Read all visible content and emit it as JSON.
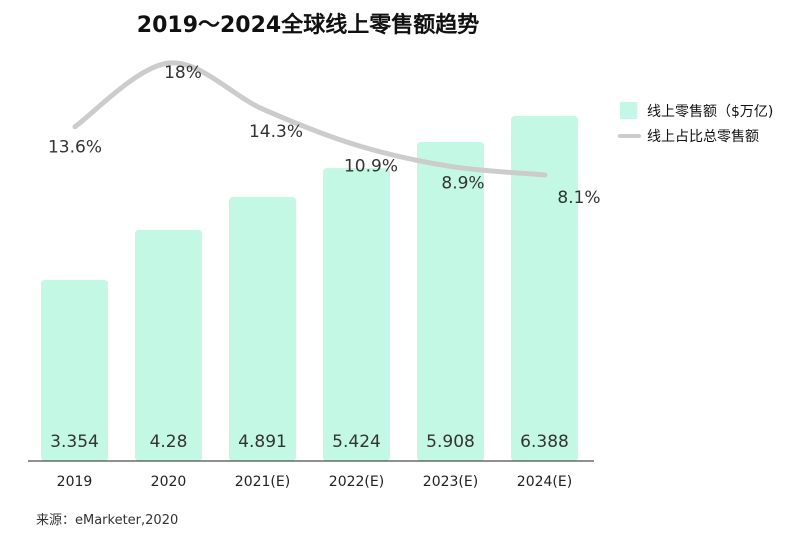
{
  "chart_data": {
    "type": "bar",
    "title": "2019～2024全球线上零售额趋势",
    "categories": [
      "2019",
      "2020",
      "2021(E)",
      "2022(E)",
      "2023(E)",
      "2024(E)"
    ],
    "series": [
      {
        "name": "线上零售额（$万亿)",
        "type": "bar",
        "color": "#c3f8e4",
        "values": [
          3.354,
          4.28,
          4.891,
          5.424,
          5.908,
          6.388
        ],
        "labels": [
          "3.354",
          "4.28",
          "4.891",
          "5.424",
          "5.908",
          "6.388"
        ]
      },
      {
        "name": "线上占比总零售额",
        "type": "line",
        "color": "#cccccc",
        "values": [
          13.6,
          18,
          14.3,
          10.9,
          8.9,
          8.1
        ],
        "labels": [
          "13.6%",
          "18%",
          "14.3%",
          "10.9%",
          "8.9%",
          "8.1%"
        ]
      }
    ],
    "source": "来源：eMarketer,2020",
    "legend": "right",
    "grid": false
  }
}
